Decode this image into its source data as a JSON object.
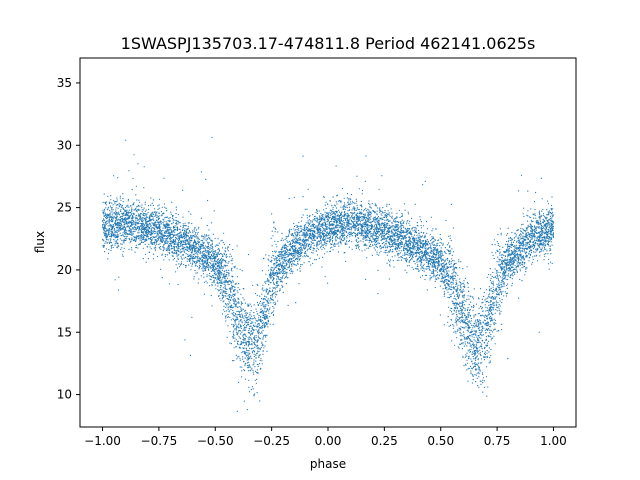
{
  "chart_data": {
    "type": "scatter",
    "title": "1SWASPJ135703.17-474811.8 Period 462141.0625s",
    "xlabel": "phase",
    "ylabel": "flux",
    "xlim": [
      -1.1,
      1.1
    ],
    "ylim": [
      7.4,
      37.0
    ],
    "xticks": [
      -1.0,
      -0.75,
      -0.5,
      -0.25,
      0.0,
      0.25,
      0.5,
      0.75,
      1.0
    ],
    "xtick_labels": [
      "−1.00",
      "−0.75",
      "−0.50",
      "−0.25",
      "0.00",
      "0.25",
      "0.50",
      "0.75",
      "1.00"
    ],
    "yticks": [
      10,
      15,
      20,
      25,
      30,
      35
    ],
    "ytick_labels": [
      "10",
      "15",
      "20",
      "25",
      "30",
      "35"
    ],
    "grid": false,
    "legend": "none",
    "point_color": "#1f77b4",
    "series": [
      {
        "phase": [
          -1.0,
          -0.9,
          -0.8,
          -0.7,
          -0.6,
          -0.5,
          -0.45,
          -0.4,
          -0.35,
          -0.3,
          -0.25,
          -0.2,
          -0.1,
          0.0,
          0.1,
          0.2,
          0.3,
          0.4,
          0.5,
          0.55,
          0.6,
          0.65,
          0.7,
          0.75,
          0.8,
          0.9,
          1.0
        ],
        "flux_median": [
          23.5,
          23.8,
          23.4,
          22.8,
          21.8,
          20.5,
          19.0,
          16.0,
          14.0,
          15.0,
          19.0,
          20.8,
          22.5,
          23.5,
          23.8,
          23.4,
          22.8,
          21.8,
          20.5,
          19.0,
          16.0,
          14.0,
          15.0,
          19.0,
          20.8,
          22.5,
          23.5
        ]
      }
    ]
  }
}
